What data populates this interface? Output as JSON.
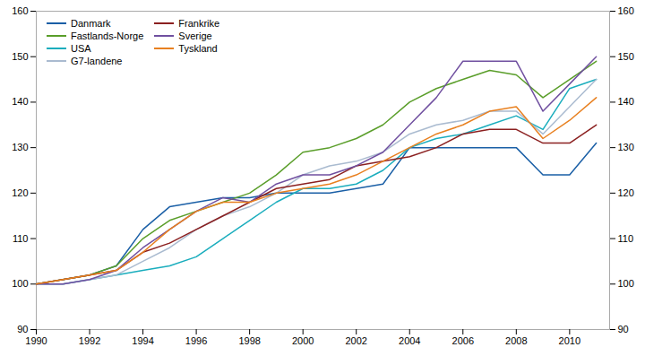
{
  "chart_data": {
    "type": "line",
    "x": [
      1990,
      1991,
      1992,
      1993,
      1994,
      1995,
      1996,
      1997,
      1998,
      1999,
      2000,
      2001,
      2002,
      2003,
      2004,
      2005,
      2006,
      2007,
      2008,
      2009,
      2010,
      2011
    ],
    "series": [
      {
        "name": "Danmark",
        "color": "#1a5fa6",
        "values": [
          100,
          101,
          102,
          104,
          112,
          117,
          118,
          119,
          119,
          120,
          120,
          120,
          121,
          122,
          130,
          130,
          130,
          130,
          130,
          124,
          124,
          131
        ]
      },
      {
        "name": "Fastlands-Norge",
        "color": "#5a9e2a",
        "values": [
          100,
          101,
          102,
          104,
          110,
          114,
          116,
          118,
          120,
          124,
          129,
          130,
          132,
          135,
          140,
          143,
          145,
          147,
          146,
          141,
          145,
          149
        ]
      },
      {
        "name": "USA",
        "color": "#1aadbd",
        "values": [
          100,
          100,
          101,
          102,
          103,
          104,
          106,
          110,
          114,
          118,
          121,
          121,
          122,
          125,
          130,
          132,
          133,
          135,
          137,
          134,
          143,
          145
        ]
      },
      {
        "name": "G7-landene",
        "color": "#aabbd0",
        "values": [
          100,
          100,
          101,
          102,
          105,
          108,
          112,
          115,
          117,
          120,
          124,
          126,
          127,
          129,
          133,
          135,
          136,
          138,
          138,
          133,
          139,
          145
        ]
      },
      {
        "name": "Frankrike",
        "color": "#8b2020",
        "values": [
          100,
          101,
          102,
          103,
          107,
          109,
          112,
          115,
          118,
          121,
          122,
          123,
          126,
          127,
          128,
          130,
          133,
          134,
          134,
          131,
          131,
          135
        ]
      },
      {
        "name": "Sverige",
        "color": "#7050a0",
        "values": [
          100,
          100,
          101,
          103,
          108,
          112,
          116,
          119,
          118,
          122,
          124,
          124,
          126,
          129,
          135,
          141,
          149,
          149,
          149,
          138,
          144,
          150
        ]
      },
      {
        "name": "Tyskland",
        "color": "#e88020",
        "values": [
          100,
          101,
          102,
          103,
          107,
          112,
          116,
          118,
          118,
          120,
          121,
          122,
          124,
          127,
          130,
          133,
          135,
          138,
          139,
          132,
          136,
          141
        ]
      }
    ],
    "xlim": [
      1990,
      2011.5
    ],
    "xticks": [
      1990,
      1992,
      1994,
      1996,
      1998,
      2000,
      2002,
      2004,
      2006,
      2008,
      2010
    ],
    "ylim": [
      90,
      160
    ],
    "yticks": [
      90,
      100,
      110,
      120,
      130,
      140,
      150,
      160
    ],
    "y2lim": [
      90,
      160
    ],
    "y2ticks": [
      90,
      100,
      110,
      120,
      130,
      140,
      150,
      160
    ],
    "legend": "upper left"
  }
}
